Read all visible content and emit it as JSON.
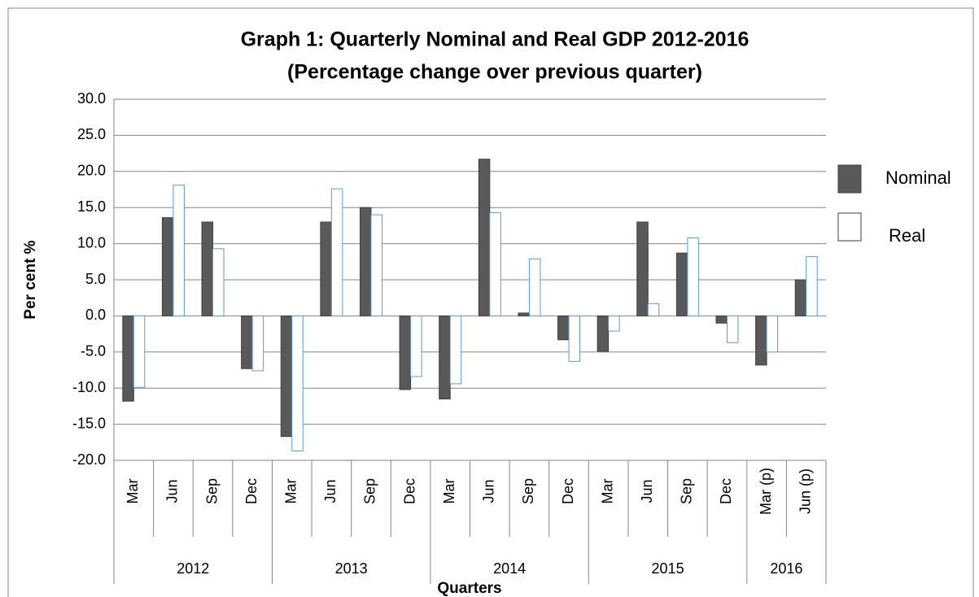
{
  "chart_data": {
    "type": "bar",
    "title": "Graph 1: Quarterly Nominal and Real GDP 2012-2016",
    "subtitle": "(Percentage change over previous quarter)",
    "x_label": "Quarters",
    "y_label": "Per  cent %",
    "category_groups": [
      {
        "label": "2012",
        "categories": [
          "Mar",
          "Jun",
          "Sep",
          "Dec"
        ]
      },
      {
        "label": "2013",
        "categories": [
          "Mar",
          "Jun",
          "Sep",
          "Dec"
        ]
      },
      {
        "label": "2014",
        "categories": [
          "Mar",
          "Jun",
          "Sep",
          "Dec"
        ]
      },
      {
        "label": "2015",
        "categories": [
          "Mar",
          "Jun",
          "Sep",
          "Dec"
        ]
      },
      {
        "label": "2016",
        "categories": [
          "Mar (p)",
          "Jun (p)"
        ]
      }
    ],
    "series": [
      {
        "name": "Nominal",
        "color": "#595959",
        "values": [
          -11.8,
          13.6,
          13.0,
          -7.3,
          -16.7,
          13.0,
          15.0,
          -10.2,
          -11.5,
          21.7,
          0.4,
          -3.3,
          -4.9,
          13.0,
          8.7,
          -1.0,
          -6.8,
          5.0
        ]
      },
      {
        "name": "Real",
        "color": "#5b9bd5",
        "values": [
          -9.9,
          18.1,
          9.3,
          -7.6,
          -18.7,
          17.6,
          14.0,
          -8.4,
          -9.4,
          14.3,
          7.9,
          -6.3,
          -2.1,
          1.7,
          10.8,
          -3.7,
          -5.0,
          8.2
        ]
      }
    ],
    "ylim": [
      -20,
      30
    ],
    "yticks": [
      {
        "value": -20,
        "label": "-20.0"
      },
      {
        "value": -15,
        "label": "-15.0"
      },
      {
        "value": -10,
        "label": "-10.0"
      },
      {
        "value": -5,
        "label": "-5.0"
      },
      {
        "value": 0,
        "label": "0.0"
      },
      {
        "value": 5,
        "label": "5.0"
      },
      {
        "value": 10,
        "label": "10.0"
      },
      {
        "value": 15,
        "label": "15.0"
      },
      {
        "value": 20,
        "label": "20.0"
      },
      {
        "value": 25,
        "label": "25.0"
      },
      {
        "value": 30,
        "label": "30.0"
      }
    ],
    "grid": true,
    "legend": "right"
  }
}
